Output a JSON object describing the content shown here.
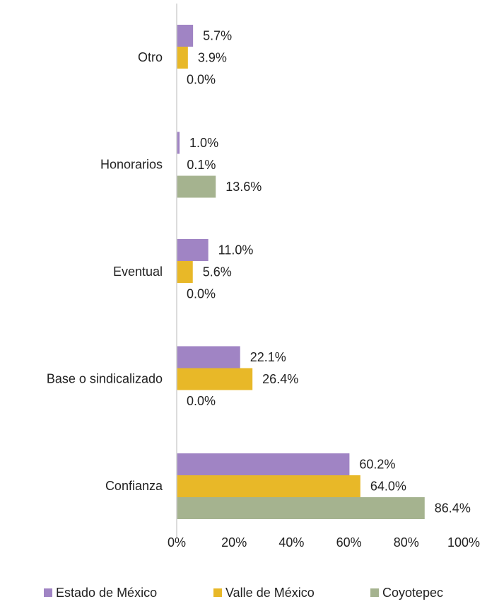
{
  "chart_data": {
    "type": "bar",
    "orientation": "horizontal",
    "categories": [
      "Otro",
      "Honorarios",
      "Eventual",
      "Base o sindicalizado",
      "Confianza"
    ],
    "series": [
      {
        "name": "Estado de México",
        "color": "#a084c4",
        "values": [
          5.7,
          1.0,
          11.0,
          22.1,
          60.2
        ],
        "value_labels": [
          "5.7%",
          "1.0%",
          "11.0%",
          "22.1%",
          "60.2%"
        ]
      },
      {
        "name": "Valle de México",
        "color": "#e8b828",
        "values": [
          3.9,
          0.1,
          5.6,
          26.4,
          64.0
        ],
        "value_labels": [
          "3.9%",
          "0.1%",
          "5.6%",
          "26.4%",
          "64.0%"
        ]
      },
      {
        "name": "Coyotepec",
        "color": "#a5b38f",
        "values": [
          0.0,
          13.6,
          0.0,
          0.0,
          86.4
        ],
        "value_labels": [
          "0.0%",
          "13.6%",
          "0.0%",
          "0.0%",
          "86.4%"
        ]
      }
    ],
    "xlim": [
      0,
      100
    ],
    "xticks": [
      {
        "value": 0,
        "label": "0%"
      },
      {
        "value": 20,
        "label": "20%"
      },
      {
        "value": 40,
        "label": "40%"
      },
      {
        "value": 60,
        "label": "60%"
      },
      {
        "value": 80,
        "label": "80%"
      },
      {
        "value": 100,
        "label": "100%"
      }
    ],
    "legend": "bottom"
  }
}
